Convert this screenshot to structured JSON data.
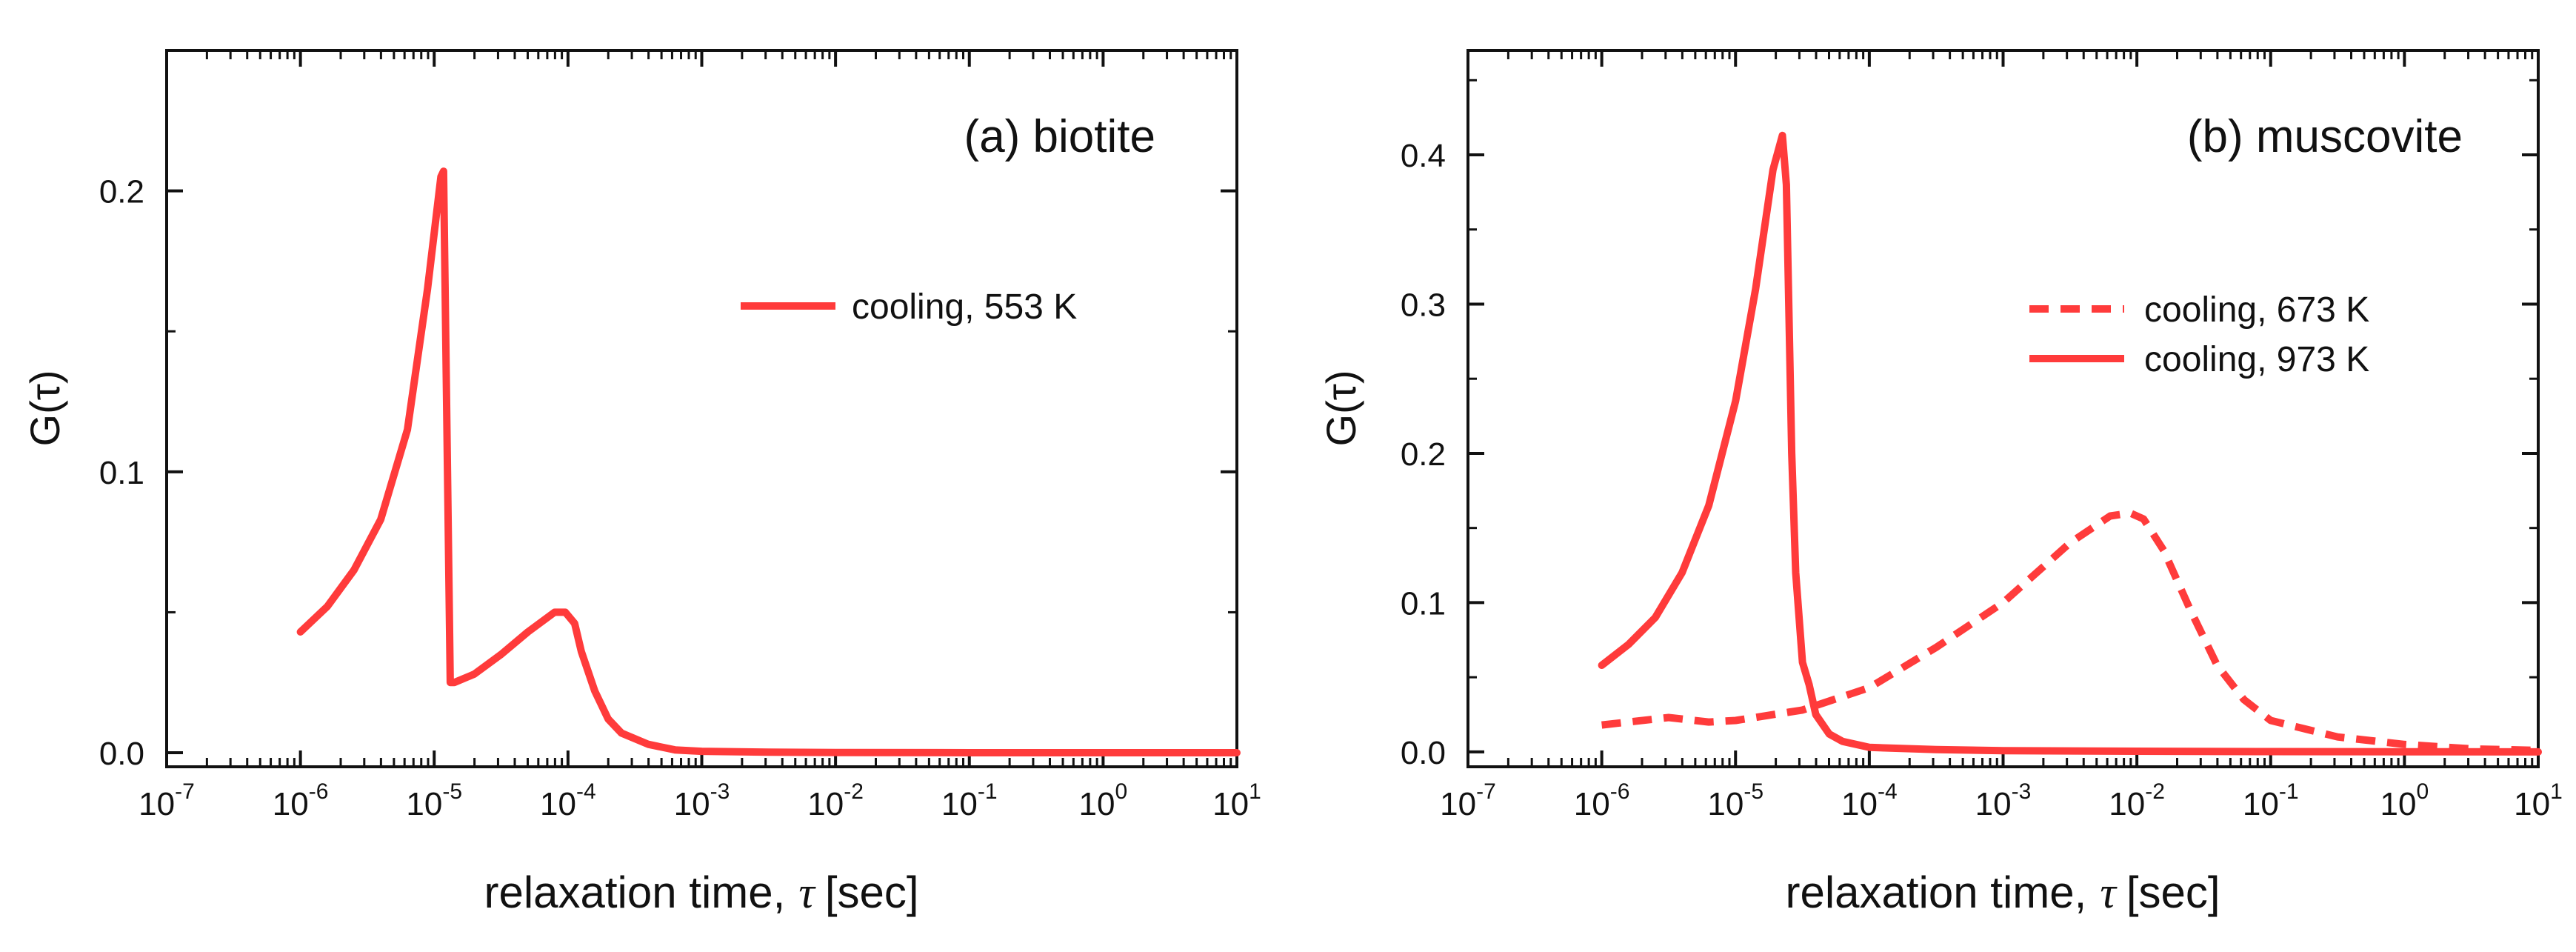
{
  "chart_data": [
    {
      "type": "line",
      "panel_label": "(a) biotite",
      "xlabel": "relaxation time,",
      "xlabel_symbol": "τ",
      "xlabel_unit": "[sec]",
      "ylabel": "G(τ)",
      "xscale": "log",
      "xlim": [
        -7,
        1
      ],
      "ylim": [
        -0.005,
        0.25
      ],
      "x_ticks": [
        {
          "base": "10",
          "exp": "-7"
        },
        {
          "base": "10",
          "exp": "-6"
        },
        {
          "base": "10",
          "exp": "-5"
        },
        {
          "base": "10",
          "exp": "-4"
        },
        {
          "base": "10",
          "exp": "-3"
        },
        {
          "base": "10",
          "exp": "-2"
        },
        {
          "base": "10",
          "exp": "-1"
        },
        {
          "base": "10",
          "exp": "0"
        },
        {
          "base": "10",
          "exp": "1"
        }
      ],
      "y_ticks": [
        "0.0",
        "0.1",
        "0.2"
      ],
      "legend": [
        {
          "label": "cooling, 553 K",
          "style": "solid"
        }
      ],
      "series": [
        {
          "name": "cooling, 553 K",
          "style": "solid",
          "color": "#ff3b3b",
          "log10_x": [
            -6.0,
            -5.8,
            -5.6,
            -5.4,
            -5.2,
            -5.05,
            -4.95,
            -4.93,
            -4.88,
            -4.85,
            -4.7,
            -4.5,
            -4.3,
            -4.1,
            -4.02,
            -3.95,
            -3.9,
            -3.8,
            -3.7,
            -3.6,
            -3.4,
            -3.2,
            -3.0,
            -2.5,
            -2.0,
            -1.0,
            0.0,
            1.0
          ],
          "y": [
            0.043,
            0.052,
            0.065,
            0.083,
            0.115,
            0.165,
            0.205,
            0.207,
            0.025,
            0.025,
            0.028,
            0.035,
            0.043,
            0.05,
            0.05,
            0.046,
            0.036,
            0.022,
            0.012,
            0.007,
            0.003,
            0.001,
            0.0005,
            0.0002,
            0.0001,
            0.0,
            0.0,
            0.0
          ]
        }
      ]
    },
    {
      "type": "line",
      "panel_label": "(b) muscovite",
      "xlabel": "relaxation time,",
      "xlabel_symbol": "τ",
      "xlabel_unit": "[sec]",
      "ylabel": "G(τ)",
      "xscale": "log",
      "xlim": [
        -7,
        1
      ],
      "ylim": [
        -0.01,
        0.47
      ],
      "x_ticks": [
        {
          "base": "10",
          "exp": "-7"
        },
        {
          "base": "10",
          "exp": "-6"
        },
        {
          "base": "10",
          "exp": "-5"
        },
        {
          "base": "10",
          "exp": "-4"
        },
        {
          "base": "10",
          "exp": "-3"
        },
        {
          "base": "10",
          "exp": "-2"
        },
        {
          "base": "10",
          "exp": "-1"
        },
        {
          "base": "10",
          "exp": "0"
        },
        {
          "base": "10",
          "exp": "1"
        }
      ],
      "y_ticks": [
        "0.0",
        "0.1",
        "0.2",
        "0.3",
        "0.4"
      ],
      "legend": [
        {
          "label": "cooling, 673 K",
          "style": "dashed"
        },
        {
          "label": "cooling, 973 K",
          "style": "solid"
        }
      ],
      "series": [
        {
          "name": "cooling, 673 K",
          "style": "dashed",
          "color": "#ff3b3b",
          "log10_x": [
            -6.0,
            -5.5,
            -5.2,
            -5.0,
            -4.5,
            -4.0,
            -3.5,
            -3.0,
            -2.5,
            -2.2,
            -2.05,
            -1.95,
            -1.8,
            -1.6,
            -1.4,
            -1.2,
            -1.0,
            -0.5,
            0.0,
            0.5,
            1.0
          ],
          "y": [
            0.018,
            0.023,
            0.02,
            0.021,
            0.028,
            0.043,
            0.07,
            0.1,
            0.14,
            0.158,
            0.16,
            0.156,
            0.135,
            0.095,
            0.058,
            0.035,
            0.021,
            0.01,
            0.005,
            0.002,
            0.001
          ]
        },
        {
          "name": "cooling, 973 K",
          "style": "solid",
          "color": "#ff3b3b",
          "log10_x": [
            -6.0,
            -5.8,
            -5.6,
            -5.4,
            -5.2,
            -5.0,
            -4.85,
            -4.72,
            -4.65,
            -4.62,
            -4.58,
            -4.55,
            -4.5,
            -4.45,
            -4.4,
            -4.3,
            -4.2,
            -4.0,
            -3.5,
            -3.0,
            -2.0,
            -1.0,
            0.0,
            1.0
          ],
          "y": [
            0.058,
            0.072,
            0.09,
            0.12,
            0.165,
            0.235,
            0.31,
            0.39,
            0.413,
            0.38,
            0.2,
            0.12,
            0.06,
            0.045,
            0.025,
            0.012,
            0.007,
            0.003,
            0.0015,
            0.0008,
            0.0004,
            0.0002,
            0.0001,
            0.0
          ]
        }
      ]
    }
  ]
}
